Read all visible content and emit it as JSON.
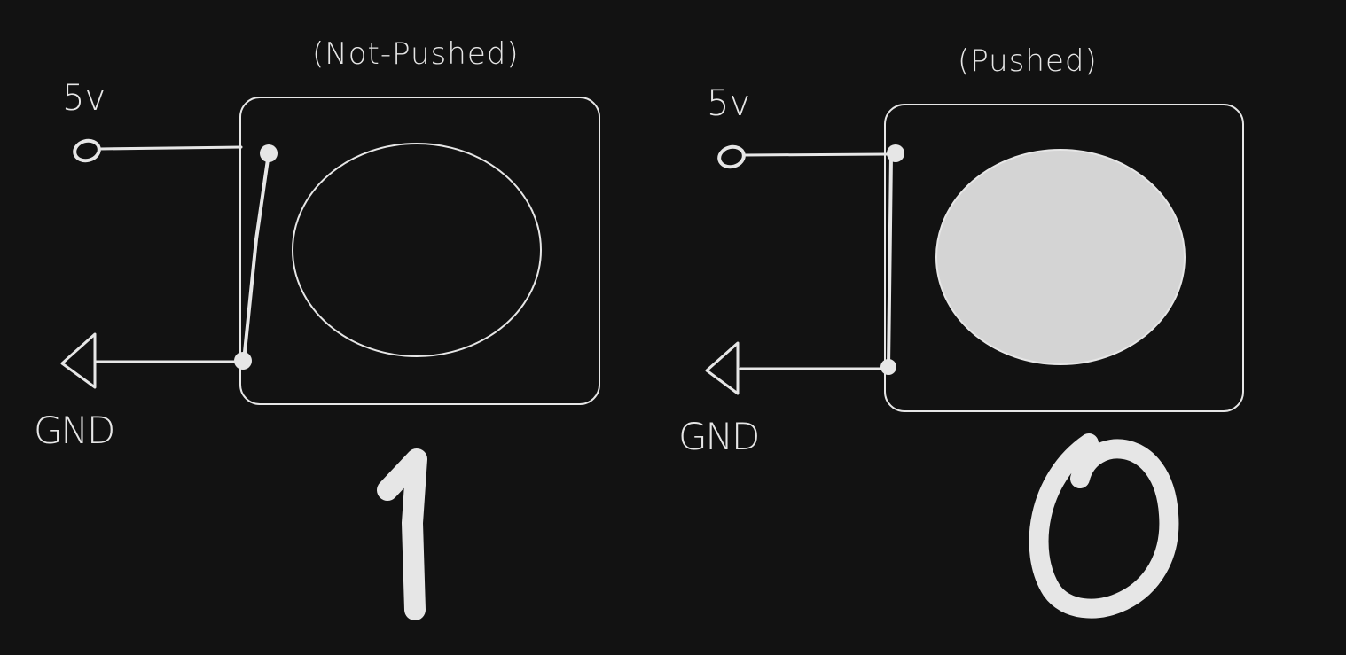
{
  "left_panel": {
    "caption": "(Not-Pushed)",
    "supply_label": "5v",
    "ground_label": "GND",
    "output_value": "1",
    "button_state": "not-pushed"
  },
  "right_panel": {
    "caption": "(Pushed)",
    "supply_label": "5v",
    "ground_label": "GND",
    "output_value": "0",
    "button_state": "pushed"
  },
  "colors": {
    "background": "#121212",
    "ink": "#e6e6e6",
    "button_fill": "#d4d4d4"
  }
}
